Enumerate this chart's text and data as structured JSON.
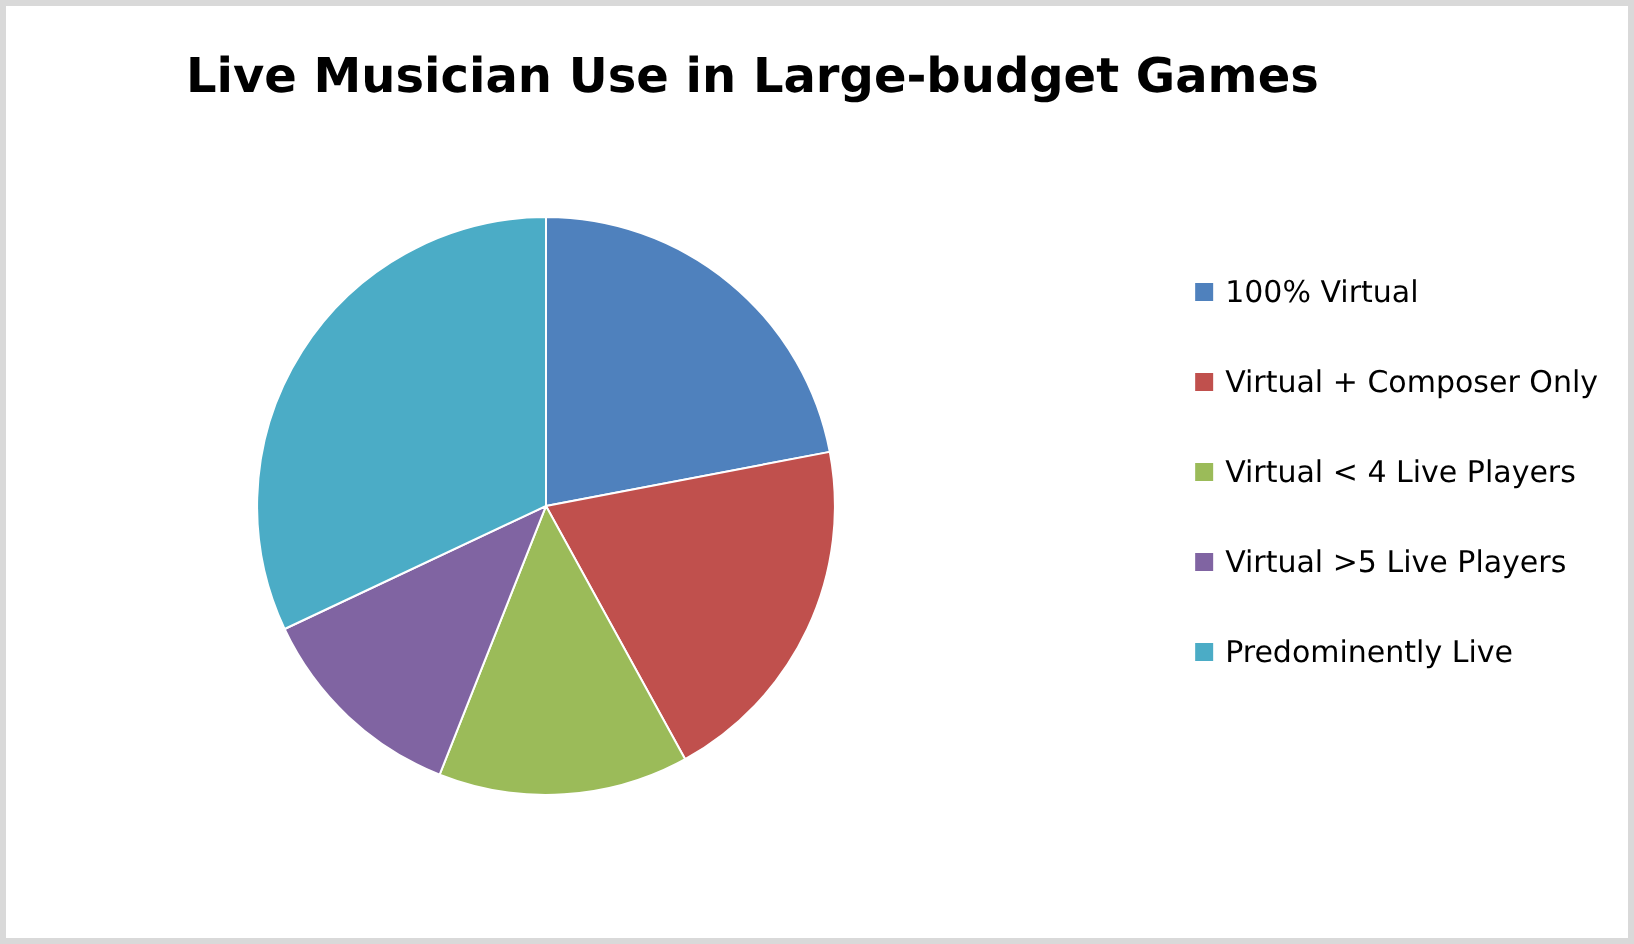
{
  "chart_data": {
    "type": "pie",
    "title": "Live Musician Use in Large-budget Games",
    "categories": [
      "100% Virtual",
      "Virtual + Composer Only",
      "Virtual < 4 Live Players",
      "Virtual >5 Live Players",
      "Predominently Live"
    ],
    "values": [
      22,
      20,
      14,
      12,
      32
    ],
    "colors": [
      "#4f81bd",
      "#c0504d",
      "#9bbb59",
      "#8064a2",
      "#4bacc6"
    ],
    "legend": "right"
  }
}
